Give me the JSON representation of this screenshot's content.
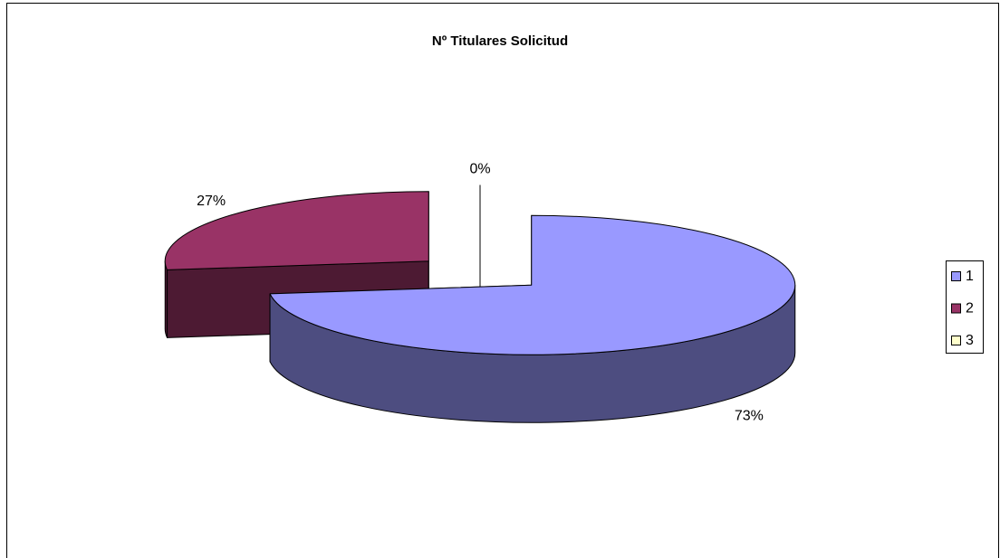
{
  "chart_data": {
    "type": "pie",
    "title": "Nº Titulares Solicitud",
    "categories": [
      "1",
      "2",
      "3"
    ],
    "values": [
      73,
      27,
      0
    ],
    "value_labels": [
      "73%",
      "27%",
      "0%"
    ],
    "colors": [
      "#9999ff",
      "#993366",
      "#ffffcc"
    ],
    "legend": "right"
  }
}
